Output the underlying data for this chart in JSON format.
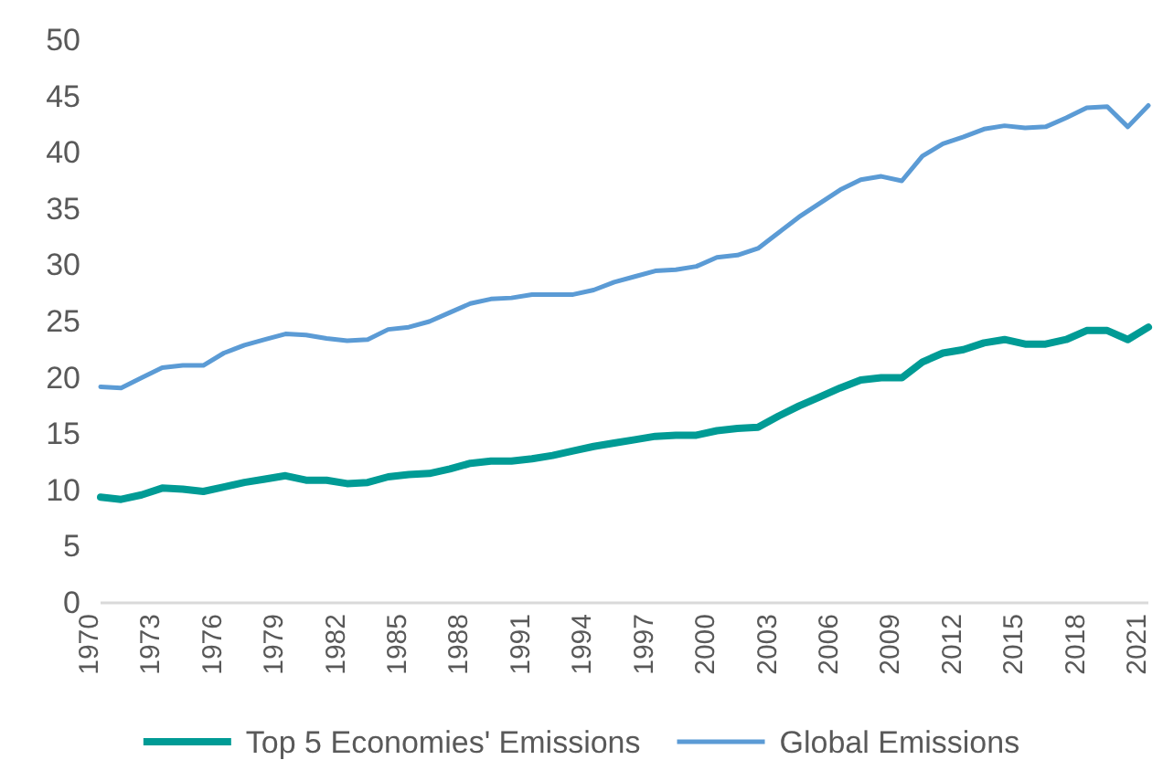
{
  "chart_data": {
    "type": "line",
    "x": [
      1970,
      1971,
      1972,
      1973,
      1974,
      1975,
      1976,
      1977,
      1978,
      1979,
      1980,
      1981,
      1982,
      1983,
      1984,
      1985,
      1986,
      1987,
      1988,
      1989,
      1990,
      1991,
      1992,
      1993,
      1994,
      1995,
      1996,
      1997,
      1998,
      1999,
      2000,
      2001,
      2002,
      2003,
      2004,
      2005,
      2006,
      2007,
      2008,
      2009,
      2010,
      2011,
      2012,
      2013,
      2014,
      2015,
      2016,
      2017,
      2018,
      2019,
      2020,
      2021
    ],
    "series": [
      {
        "name": "Top 5 Economies' Emissions",
        "color": "#009b95",
        "values": [
          9.4,
          9.2,
          9.6,
          10.2,
          10.1,
          9.9,
          10.3,
          10.7,
          11.0,
          11.3,
          10.9,
          10.9,
          10.6,
          10.7,
          11.2,
          11.4,
          11.5,
          11.9,
          12.4,
          12.6,
          12.6,
          12.8,
          13.1,
          13.5,
          13.9,
          14.2,
          14.5,
          14.8,
          14.9,
          14.9,
          15.3,
          15.5,
          15.6,
          16.6,
          17.5,
          18.3,
          19.1,
          19.8,
          20.0,
          20.0,
          21.4,
          22.2,
          22.5,
          23.1,
          23.4,
          23.0,
          23.0,
          23.4,
          24.2,
          24.2,
          23.4,
          24.5
        ]
      },
      {
        "name": "Global Emissions",
        "color": "#5b9bd5",
        "values": [
          19.2,
          19.1,
          20.0,
          20.9,
          21.1,
          21.1,
          22.2,
          22.9,
          23.4,
          23.9,
          23.8,
          23.5,
          23.3,
          23.4,
          24.3,
          24.5,
          25.0,
          25.8,
          26.6,
          27.0,
          27.1,
          27.4,
          27.4,
          27.4,
          27.8,
          28.5,
          29.0,
          29.5,
          29.6,
          29.9,
          30.7,
          30.9,
          31.5,
          32.9,
          34.3,
          35.5,
          36.7,
          37.6,
          37.9,
          37.5,
          39.7,
          40.8,
          41.4,
          42.1,
          42.4,
          42.2,
          42.3,
          43.1,
          44.0,
          44.1,
          42.3,
          44.2
        ]
      }
    ],
    "xlim": [
      1970,
      2021
    ],
    "xticks": [
      1970,
      1973,
      1976,
      1979,
      1982,
      1985,
      1988,
      1991,
      1994,
      1997,
      2000,
      2003,
      2006,
      2009,
      2012,
      2015,
      2018,
      2021
    ],
    "ylim": [
      0,
      50
    ],
    "yticks": [
      0,
      5,
      10,
      15,
      20,
      25,
      30,
      35,
      40,
      45,
      50
    ],
    "grid": false,
    "legend": "bottom"
  }
}
